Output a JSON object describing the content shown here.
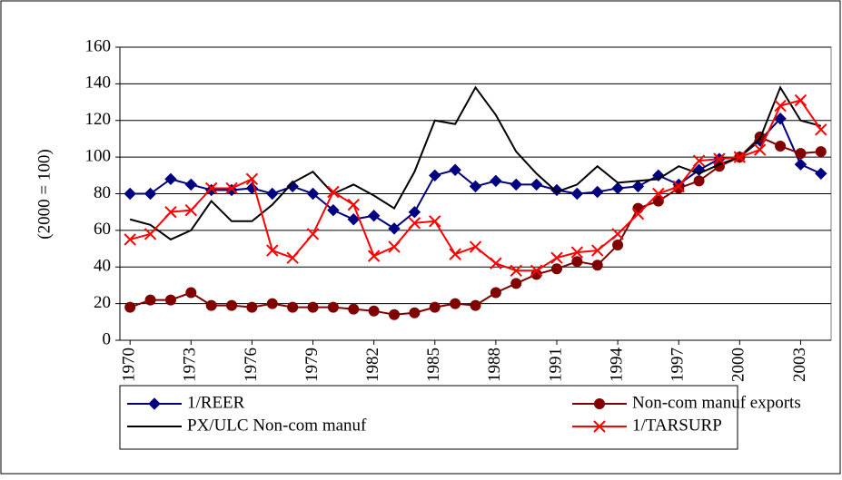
{
  "chart_data": {
    "type": "line",
    "y_label": "(2000 = 100)",
    "x": [
      1970,
      1971,
      1972,
      1973,
      1974,
      1975,
      1976,
      1977,
      1978,
      1979,
      1980,
      1981,
      1982,
      1983,
      1984,
      1985,
      1986,
      1987,
      1988,
      1989,
      1990,
      1991,
      1992,
      1993,
      1994,
      1995,
      1996,
      1997,
      1998,
      1999,
      2000,
      2001,
      2002,
      2003,
      2004
    ],
    "xlim": [
      1969.5,
      2004.5
    ],
    "xticks": [
      1970,
      1973,
      1976,
      1979,
      1982,
      1985,
      1988,
      1991,
      1994,
      1997,
      2000,
      2003
    ],
    "ylim": [
      0,
      160
    ],
    "yticks": [
      0,
      20,
      40,
      60,
      80,
      100,
      120,
      140,
      160
    ],
    "grid": true,
    "series": [
      {
        "name": "1/REER",
        "color": "#000080",
        "marker": "diamond",
        "values": [
          80,
          80,
          88,
          85,
          82,
          82,
          83,
          80,
          84,
          80,
          71,
          66,
          68,
          61,
          70,
          90,
          93,
          84,
          87,
          85,
          85,
          82,
          80,
          81,
          83,
          84,
          90,
          85,
          93,
          99,
          100,
          109,
          121,
          96,
          91
        ]
      },
      {
        "name": "Non-com manuf exports",
        "color": "#800000",
        "marker": "circle",
        "values": [
          18,
          22,
          22,
          26,
          19,
          19,
          18,
          20,
          18,
          18,
          18,
          17,
          16,
          14,
          15,
          18,
          20,
          19,
          26,
          31,
          36,
          39,
          43,
          41,
          52,
          72,
          76,
          83,
          87,
          95,
          100,
          111,
          106,
          102,
          103
        ]
      },
      {
        "name": "PX/ULC Non-com manuf",
        "color": "#000000",
        "marker": "none",
        "values": [
          66,
          63,
          55,
          60,
          76,
          65,
          65,
          74,
          86,
          92,
          80,
          85,
          79,
          72,
          92,
          120,
          118,
          138,
          123,
          103,
          91,
          81,
          85,
          95,
          86,
          87,
          88,
          95,
          91,
          96,
          100,
          110,
          138,
          120,
          117
        ]
      },
      {
        "name": "1/TARSURP",
        "color": "#ff0000",
        "marker": "x",
        "values": [
          55,
          58,
          70,
          71,
          83,
          83,
          88,
          49,
          45,
          58,
          81,
          74,
          46,
          51,
          64,
          65,
          47,
          51,
          42,
          38,
          38,
          45,
          48,
          49,
          58,
          69,
          80,
          84,
          98,
          99,
          100,
          104,
          128,
          131,
          115
        ]
      }
    ]
  }
}
